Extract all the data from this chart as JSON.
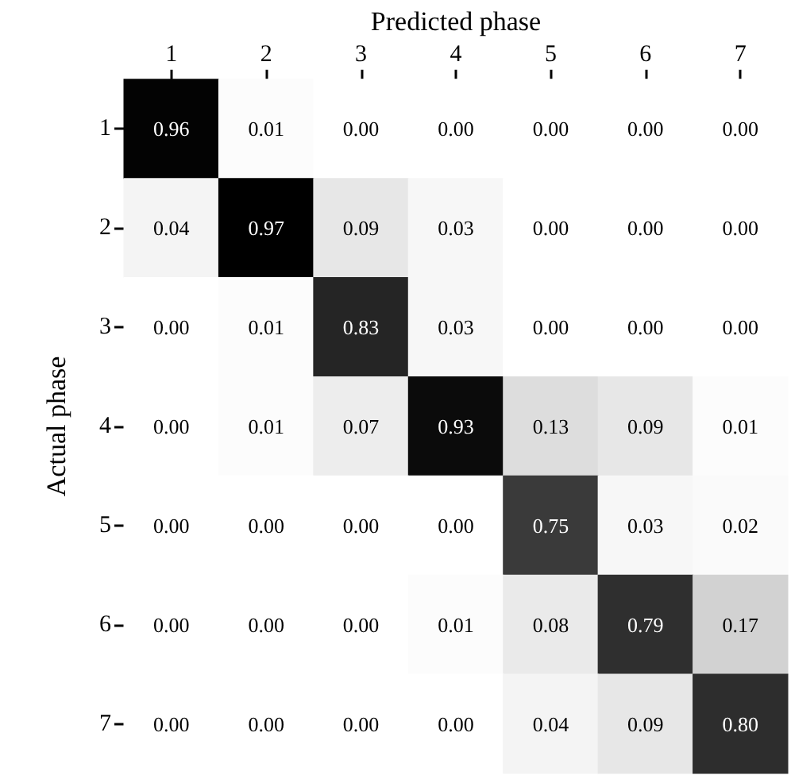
{
  "chart_data": {
    "type": "heatmap",
    "xlabel": "Predicted phase",
    "ylabel": "Actual phase",
    "categories": [
      "1",
      "2",
      "3",
      "4",
      "5",
      "6",
      "7"
    ],
    "y_categories": [
      "1",
      "2",
      "3",
      "4",
      "5",
      "6",
      "7"
    ],
    "cells": [
      [
        0.96,
        0.01,
        0.0,
        0.0,
        0.0,
        0.0,
        0.0
      ],
      [
        0.04,
        0.97,
        0.09,
        0.03,
        0.0,
        0.0,
        0.0
      ],
      [
        0.0,
        0.01,
        0.83,
        0.03,
        0.0,
        0.0,
        0.0
      ],
      [
        0.0,
        0.01,
        0.07,
        0.93,
        0.13,
        0.09,
        0.01
      ],
      [
        0.0,
        0.0,
        0.0,
        0.0,
        0.75,
        0.03,
        0.02
      ],
      [
        0.0,
        0.0,
        0.0,
        0.01,
        0.08,
        0.79,
        0.17
      ],
      [
        0.0,
        0.0,
        0.0,
        0.0,
        0.04,
        0.09,
        0.8
      ]
    ],
    "cell_labels": [
      [
        "0.96",
        "0.01",
        "0.00",
        "0.00",
        "0.00",
        "0.00",
        "0.00"
      ],
      [
        "0.04",
        "0.97",
        "0.09",
        "0.03",
        "0.00",
        "0.00",
        "0.00"
      ],
      [
        "0.00",
        "0.01",
        "0.83",
        "0.03",
        "0.00",
        "0.00",
        "0.00"
      ],
      [
        "0.00",
        "0.01",
        "0.07",
        "0.93",
        "0.13",
        "0.09",
        "0.01"
      ],
      [
        "0.00",
        "0.00",
        "0.00",
        "0.00",
        "0.75",
        "0.03",
        "0.02"
      ],
      [
        "0.00",
        "0.00",
        "0.00",
        "0.01",
        "0.08",
        "0.79",
        "0.17"
      ],
      [
        "0.00",
        "0.00",
        "0.00",
        "0.00",
        "0.04",
        "0.09",
        "0.80"
      ]
    ]
  }
}
